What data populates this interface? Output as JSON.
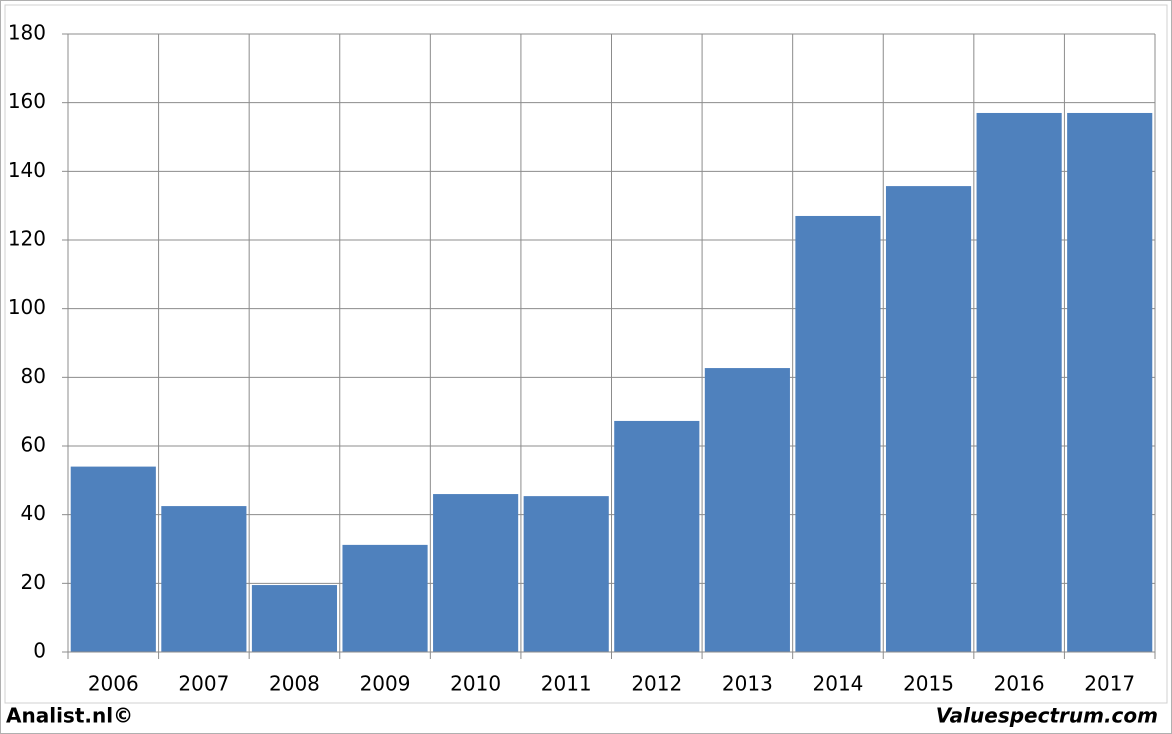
{
  "chart_data": {
    "type": "bar",
    "categories": [
      "2006",
      "2007",
      "2008",
      "2009",
      "2010",
      "2011",
      "2012",
      "2013",
      "2014",
      "2015",
      "2016",
      "2017"
    ],
    "values": [
      54,
      42.5,
      19.5,
      31.2,
      46,
      45.4,
      67.3,
      82.7,
      127,
      135.7,
      157,
      157
    ],
    "color": "#4f81bd",
    "ylim": [
      0,
      180
    ],
    "yticks": [
      0,
      20,
      40,
      60,
      80,
      100,
      120,
      140,
      160,
      180
    ],
    "grid": true
  },
  "footer": {
    "left": "Analist.nl©",
    "right": "Valuespectrum.com"
  }
}
